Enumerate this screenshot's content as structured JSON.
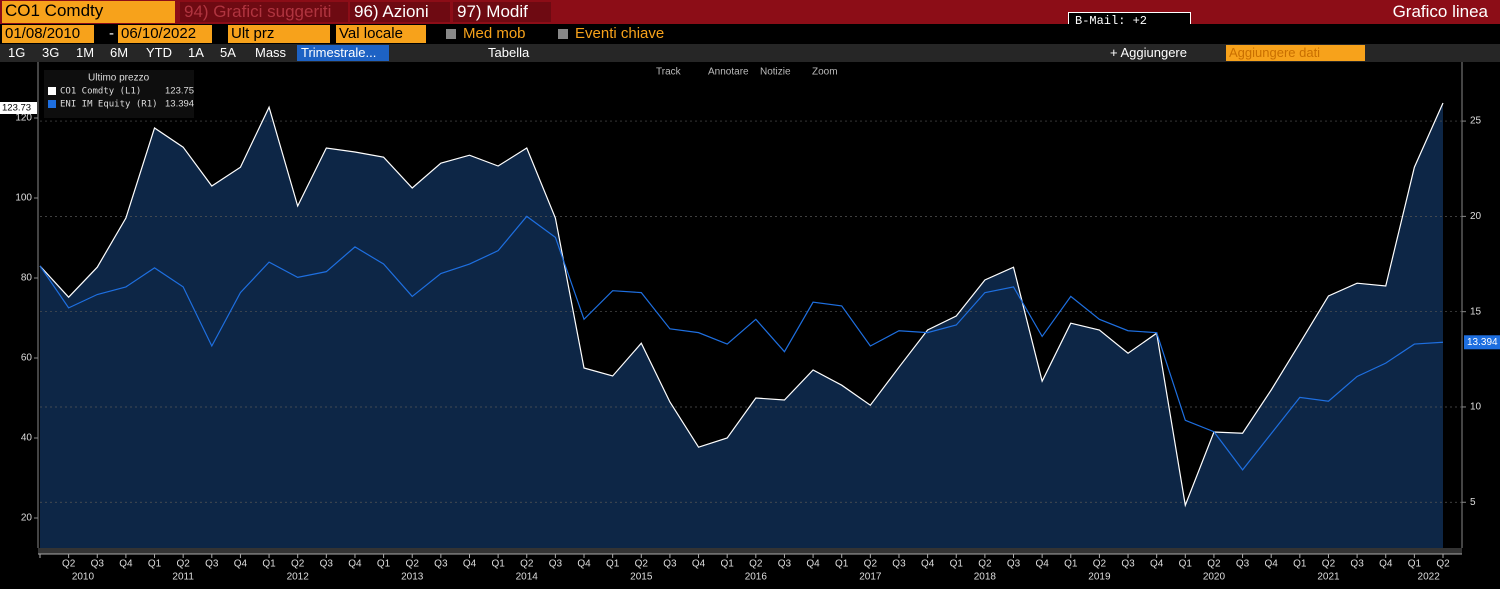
{
  "ui": {
    "top_bar": {
      "security": "CO1 Comdty",
      "suggested": "94) Grafici suggeriti",
      "actions": "96) Azioni",
      "modify": "97) Modif",
      "bmail": "B-Mail: +2",
      "chart_kind": "Grafico linea"
    },
    "date_row": {
      "start": "01/08/2010",
      "dash": "-",
      "end": "06/10/2022",
      "field": "Ult prz",
      "currency": "Val locale",
      "moving_avg": "Med mob",
      "events": "Eventi chiave"
    },
    "range_row": {
      "buttons": [
        "1G",
        "3G",
        "1M",
        "6M",
        "YTD",
        "1A",
        "5A",
        "Mass"
      ],
      "period": "Trimestrale...",
      "table": "Tabella",
      "add": "+ Aggiungere",
      "add_data": "Aggiungere dati"
    },
    "chart_tools": [
      "Track",
      "Annotare",
      "Notizie",
      "Zoom"
    ]
  },
  "chart_data": {
    "type": "line",
    "legend_title": "Ultimo prezzo",
    "left_badge": "123.73",
    "categories": [
      null,
      "Q2",
      "Q3",
      "Q4",
      "Q1",
      "Q2",
      "Q3",
      "Q4",
      "Q1",
      "Q2",
      "Q3",
      "Q4",
      "Q1",
      "Q2",
      "Q3",
      "Q4",
      "Q1",
      "Q2",
      "Q3",
      "Q4",
      "Q1",
      "Q2",
      "Q3",
      "Q4",
      "Q1",
      "Q2",
      "Q3",
      "Q4",
      "Q1",
      "Q2",
      "Q3",
      "Q4",
      "Q1",
      "Q2",
      "Q3",
      "Q4",
      "Q1",
      "Q2",
      "Q3",
      "Q4",
      "Q1",
      "Q2",
      "Q3",
      "Q4",
      "Q1",
      "Q2",
      "Q3",
      "Q4",
      "Q1",
      "Q2"
    ],
    "years": [
      "2010",
      "2011",
      "2012",
      "2013",
      "2014",
      "2015",
      "2016",
      "2017",
      "2018",
      "2019",
      "2020",
      "2021",
      "2022"
    ],
    "series": [
      {
        "name": "CO1 Comdty (L1)",
        "color": "#ffffff",
        "area_color": "#0d2646",
        "values": [
          83,
          75.2,
          82.7,
          95,
          117.5,
          112.7,
          103,
          107.7,
          122.7,
          98,
          112.5,
          111.5,
          110.2,
          102.5,
          108.7,
          110.7,
          108,
          112.5,
          95,
          57.5,
          55.5,
          63.7,
          49,
          37.7,
          40,
          50,
          49.5,
          57,
          53.2,
          48.2,
          57.7,
          67,
          70.5,
          79.5,
          82.7,
          54.2,
          68.7,
          67,
          61.2,
          66.2,
          23.2,
          41.5,
          41.2,
          52,
          63.7,
          75.5,
          78.7,
          78,
          107.7,
          123.75
        ]
      },
      {
        "name": "ENI IM Equity (R1)",
        "color": "#1e6fe0",
        "axis": "y2",
        "values": [
          17.4,
          15.2,
          15.9,
          16.3,
          17.3,
          16.3,
          13.2,
          16.0,
          17.6,
          16.8,
          17.1,
          18.4,
          17.5,
          15.8,
          17.0,
          17.5,
          18.2,
          20.0,
          18.9,
          14.6,
          16.1,
          16.0,
          14.1,
          13.9,
          13.3,
          14.6,
          12.9,
          15.5,
          15.3,
          13.2,
          14.0,
          13.9,
          14.3,
          16.0,
          16.3,
          13.7,
          15.8,
          14.6,
          14.0,
          13.9,
          9.3,
          8.7,
          6.7,
          8.6,
          10.5,
          10.3,
          11.6,
          12.3,
          13.3,
          13.394
        ]
      }
    ],
    "ylim": [
      12.5,
      134
    ],
    "yticks": [
      20,
      40,
      60,
      80,
      100,
      120
    ],
    "y2lim": [
      2.6,
      28.1
    ],
    "y2ticks": [
      5,
      10,
      15,
      20,
      25
    ],
    "grid": true
  }
}
